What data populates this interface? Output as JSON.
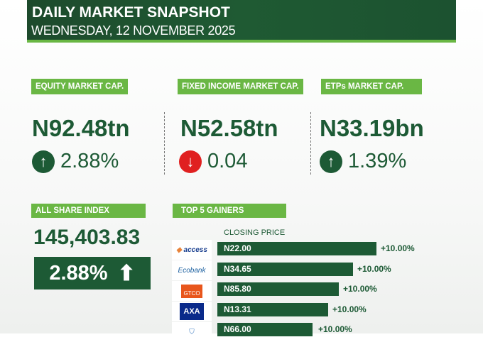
{
  "header": {
    "title": "DAILY MARKET SNAPSHOT",
    "date": "WEDNESDAY, 12 NOVEMBER 2025"
  },
  "metrics": [
    {
      "label": "EQUITY MARKET CAP.",
      "value": "N92.48tn",
      "change": "2.88%",
      "direction": "up"
    },
    {
      "label": "FIXED INCOME MARKET CAP.",
      "value": "N52.58tn",
      "change": "0.04",
      "direction": "down"
    },
    {
      "label": "ETPs MARKET CAP.",
      "value": "N33.19bn",
      "change": "1.39%",
      "direction": "up"
    }
  ],
  "asi": {
    "label": "ALL SHARE INDEX",
    "value": "145,403.83",
    "change": "2.88%",
    "direction": "up"
  },
  "gainers": {
    "label": "TOP 5 GAINERS",
    "column": "CLOSING PRICE",
    "items": [
      {
        "logo": "access",
        "price": "N22.00",
        "change": "+10.00%"
      },
      {
        "logo": "Ecobank",
        "price": "N34.65",
        "change": "+10.00%"
      },
      {
        "logo": "GTCO",
        "price": "N85.80",
        "change": "+10.00%"
      },
      {
        "logo": "AXA",
        "price": "N13.31",
        "change": "+10.00%"
      },
      {
        "logo": "",
        "price": "N66.00",
        "change": "+10.00%"
      }
    ]
  },
  "colors": {
    "dark_green": "#1d5a35",
    "light_green": "#6ab744",
    "red": "#e02020"
  }
}
